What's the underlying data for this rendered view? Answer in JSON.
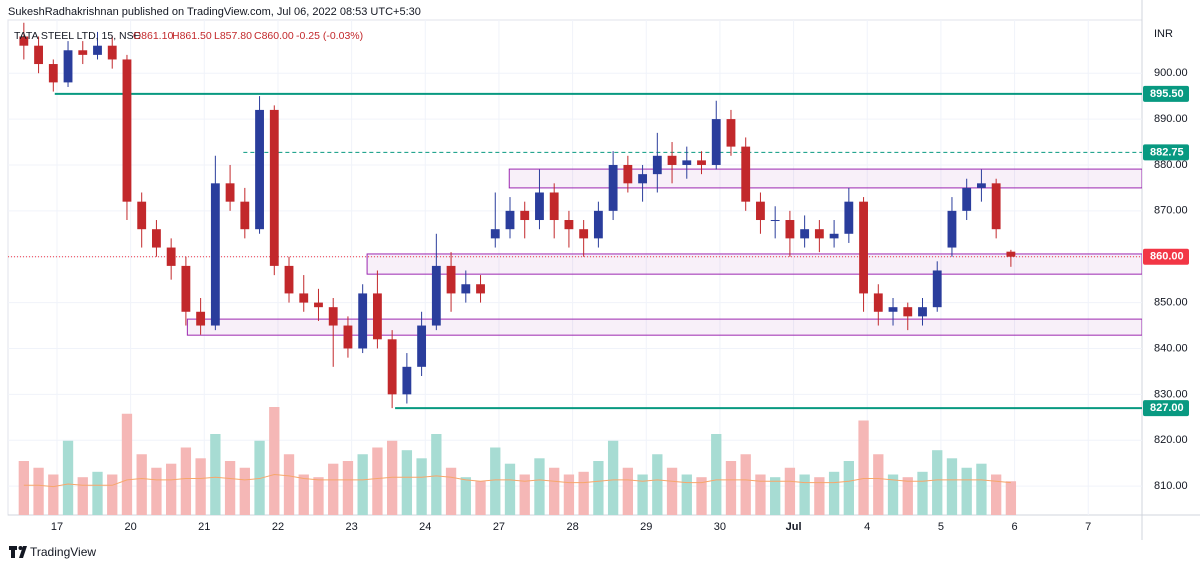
{
  "header": {
    "published": "SukeshRadhakrishnan published on TradingView.com, Jul 06, 2022 08:53 UTC+5:30"
  },
  "legend": {
    "symbol": "TATA STEEL LTD, 15, NSE",
    "open": "O861.10",
    "high": "H861.50",
    "low": "L857.80",
    "close": "C860.00",
    "change": "-0.25 (-0.03%)"
  },
  "currency": "INR",
  "brand": "TradingView",
  "chart_data": {
    "type": "candlestick",
    "x": [
      -0.45,
      -0.25,
      -0.05,
      0.15,
      0.35,
      0.55,
      0.75,
      0.95,
      1.15,
      1.35,
      1.55,
      1.75,
      1.95,
      2.15,
      2.35,
      2.55,
      2.75,
      2.95,
      3.15,
      3.35,
      3.55,
      3.75,
      3.95,
      4.15,
      4.35,
      4.55,
      4.75,
      4.95,
      5.15,
      5.35,
      5.55,
      5.75,
      5.95,
      6.15,
      6.35,
      6.55,
      6.75,
      6.95,
      7.15,
      7.35,
      7.55,
      7.75,
      7.95,
      8.15,
      8.35,
      8.55,
      8.75,
      8.95,
      9.15,
      9.35,
      9.55,
      9.75,
      9.95,
      10.15,
      10.35,
      10.55,
      10.75,
      10.95,
      11.15,
      11.35,
      11.55,
      11.75,
      11.95,
      12.15,
      12.35,
      12.55,
      12.75,
      12.95
    ],
    "open": [
      908,
      906,
      902,
      898,
      905,
      904,
      906,
      903,
      872,
      866,
      862,
      858,
      848,
      845,
      876,
      872,
      866,
      892,
      858,
      852,
      850,
      849,
      845,
      840,
      852,
      842,
      830,
      836,
      845,
      858,
      852,
      854,
      864,
      866,
      870,
      868,
      874,
      868,
      866,
      864,
      870,
      880,
      876,
      878,
      882,
      880,
      881,
      880,
      890,
      884,
      872,
      868,
      868,
      864,
      866,
      864,
      865,
      872,
      852,
      848,
      849,
      847,
      849,
      862,
      870,
      875,
      876,
      861.1
    ],
    "high": [
      911,
      908,
      903,
      907,
      907,
      909,
      908,
      904,
      874,
      868,
      864,
      860,
      851,
      882,
      880,
      875,
      895,
      893,
      860,
      856,
      853,
      851,
      847,
      854,
      857,
      844,
      839,
      848,
      865,
      861,
      857,
      856,
      874,
      873,
      872,
      879,
      876,
      870,
      868,
      872,
      883,
      882,
      880,
      887,
      885,
      884,
      883,
      894,
      892,
      886,
      874,
      871,
      870,
      869,
      868,
      868,
      875,
      873,
      854,
      851,
      850,
      851,
      859,
      873,
      877,
      879,
      877,
      861.5
    ],
    "low": [
      903,
      900,
      896,
      897,
      902,
      903,
      901,
      868,
      862,
      860,
      855,
      845,
      843,
      844,
      870,
      864,
      865,
      856,
      850,
      848,
      846,
      836,
      838,
      839,
      840,
      827,
      828,
      834,
      844,
      848,
      850,
      850,
      862,
      864,
      864,
      866,
      864,
      862,
      860,
      862,
      868,
      874,
      872,
      874,
      876,
      877,
      878,
      879,
      882,
      870,
      865,
      864,
      860,
      862,
      861,
      862,
      863,
      848,
      845,
      845,
      844,
      845,
      848,
      860,
      868,
      872,
      864,
      857.8
    ],
    "close": [
      906,
      902,
      898,
      905,
      904,
      906,
      903,
      872,
      866,
      862,
      858,
      848,
      845,
      876,
      872,
      866,
      892,
      858,
      852,
      850,
      849,
      845,
      840,
      852,
      842,
      830,
      836,
      845,
      858,
      852,
      854,
      852,
      866,
      870,
      868,
      874,
      868,
      866,
      864,
      870,
      880,
      876,
      878,
      882,
      880,
      881,
      880,
      890,
      884,
      872,
      868,
      868,
      864,
      866,
      864,
      865,
      872,
      852,
      848,
      849,
      847,
      849,
      857,
      870,
      875,
      876,
      866,
      860
    ],
    "volume": [
      40,
      35,
      30,
      55,
      28,
      32,
      30,
      75,
      45,
      35,
      38,
      50,
      42,
      60,
      40,
      35,
      55,
      80,
      45,
      30,
      28,
      38,
      40,
      45,
      50,
      55,
      48,
      42,
      60,
      35,
      28,
      25,
      50,
      38,
      30,
      42,
      35,
      30,
      32,
      40,
      55,
      35,
      30,
      45,
      35,
      30,
      28,
      60,
      40,
      45,
      30,
      28,
      35,
      30,
      28,
      32,
      40,
      70,
      45,
      30,
      28,
      32,
      48,
      42,
      35,
      38,
      30,
      25
    ],
    "volume_ma": [
      22,
      22,
      21,
      23,
      22,
      22,
      22,
      26,
      27,
      26,
      26,
      27,
      27,
      28,
      27,
      26,
      27,
      30,
      29,
      27,
      26,
      26,
      26,
      26,
      27,
      28,
      28,
      28,
      29,
      28,
      26,
      25,
      26,
      26,
      25,
      26,
      25,
      24,
      24,
      25,
      26,
      26,
      25,
      26,
      25,
      24,
      24,
      26,
      26,
      26,
      25,
      25,
      25,
      24,
      24,
      24,
      25,
      27,
      27,
      26,
      25,
      25,
      26,
      26,
      26,
      26,
      25,
      24
    ],
    "up_color": "#2a3d9c",
    "down_color": "#c2282b",
    "volume_up_color": "#a7dcd3",
    "volume_down_color": "#f5b7b6",
    "ma_color": "#f7a66b",
    "xlim": [
      -0.665,
      14.73
    ],
    "ylim": [
      803.7,
      911.6
    ],
    "vlim": [
      0,
      100
    ],
    "xticks": [
      {
        "value": 0,
        "label": "17"
      },
      {
        "value": 1,
        "label": "20"
      },
      {
        "value": 2,
        "label": "21"
      },
      {
        "value": 3,
        "label": "22"
      },
      {
        "value": 4,
        "label": "23"
      },
      {
        "value": 5,
        "label": "24"
      },
      {
        "value": 6,
        "label": "27"
      },
      {
        "value": 7,
        "label": "28"
      },
      {
        "value": 8,
        "label": "29"
      },
      {
        "value": 9,
        "label": "30"
      },
      {
        "value": 10,
        "label": "Jul"
      },
      {
        "value": 11,
        "label": "4"
      },
      {
        "value": 12,
        "label": "5"
      },
      {
        "value": 13,
        "label": "6"
      },
      {
        "value": 14,
        "label": "7"
      }
    ],
    "yticks": [
      {
        "value": 810,
        "label": "810.00"
      },
      {
        "value": 820,
        "label": "820.00"
      },
      {
        "value": 830,
        "label": "830.00"
      },
      {
        "value": 840,
        "label": "840.00"
      },
      {
        "value": 850,
        "label": "850.00"
      },
      {
        "value": 860,
        "label": "860.00"
      },
      {
        "value": 870,
        "label": "870.00"
      },
      {
        "value": 880,
        "label": "880.00"
      },
      {
        "value": 890,
        "label": "890.00"
      },
      {
        "value": 900,
        "label": "900.00"
      }
    ],
    "levels": [
      {
        "value": 895.5,
        "label": "895.50",
        "x_start": -0.03,
        "style": "solid",
        "color": "#089981"
      },
      {
        "value": 882.75,
        "label": "882.75",
        "x_start": 2.53,
        "style": "dashed",
        "color": "#089981"
      },
      {
        "value": 827,
        "label": "827.00",
        "x_start": 4.59,
        "style": "solid",
        "color": "#089981"
      }
    ],
    "last_price": {
      "value": 860,
      "label": "860.00",
      "color": "#f23645"
    },
    "zones": [
      {
        "x_start": 6.14,
        "high": 879.1,
        "low": 875
      },
      {
        "x_start": 4.21,
        "high": 860.6,
        "low": 856.2
      },
      {
        "x_start": 1.77,
        "high": 846.4,
        "low": 842.9
      }
    ],
    "zone_color": "#9c27b0"
  }
}
